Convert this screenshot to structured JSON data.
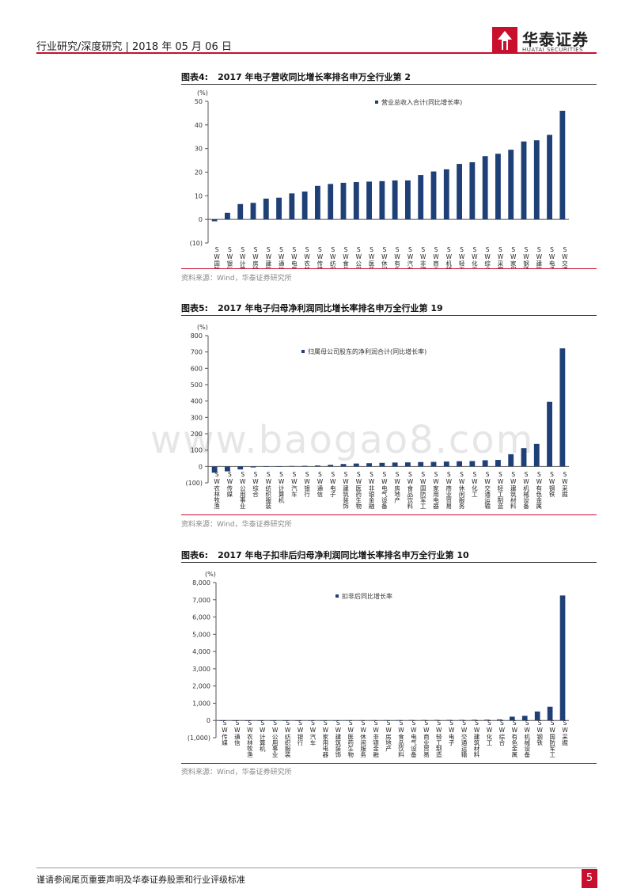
{
  "header": {
    "text": "行业研究/深度研究 | 2018 年 05 月 06 日",
    "logo_cn": "华泰证券",
    "logo_en": "HUATAI SECURITIES"
  },
  "watermark": "www.baogao8.com",
  "footer": {
    "text": "谨请参阅尾页重要声明及华泰证券股票和行业评级标准",
    "page": "5"
  },
  "colors": {
    "bar": "#1f3f77",
    "accent": "#c8102e"
  },
  "chart_data": [
    {
      "type": "bar",
      "fig_num": "图表4:",
      "title": "2017 年电子营收同比增长率排名申万全行业第 2",
      "unit": "(%)",
      "legend": "营业总收入合计(同比增长率)",
      "source": "资料来源：Wind，华泰证券研究所",
      "ylim": [
        -10,
        50
      ],
      "ticks": [
        50,
        40,
        30,
        20,
        10,
        0,
        -10
      ],
      "tick_labels": [
        "50",
        "40",
        "30",
        "20",
        "10",
        "0",
        "(10)"
      ],
      "categories": [
        "SW国防军工",
        "SW银行",
        "SW计算机",
        "SW房地产",
        "SW建筑装饰",
        "SW通信",
        "SW电气设备",
        "SW农林牧渔",
        "SW传媒",
        "SW纺织服装",
        "SW食品饮料",
        "SW公用事业",
        "SW医药生物",
        "SW休闲服务",
        "SW有色金属",
        "SW汽车",
        "SW非银金融",
        "SW商业贸易",
        "SW机械设备",
        "SW轻工制造",
        "SW化工",
        "SW综合",
        "SW采掘",
        "SW家用电器",
        "SW钢铁",
        "SW建筑材料",
        "SW电子",
        "SW交通运输"
      ],
      "values": [
        -0.8,
        2.8,
        6.5,
        7.0,
        8.8,
        9.2,
        11.0,
        11.8,
        14.2,
        15.0,
        15.5,
        15.8,
        16.0,
        16.2,
        16.5,
        16.5,
        18.8,
        20.3,
        21.2,
        23.5,
        24.2,
        26.8,
        27.8,
        29.5,
        33.0,
        33.5,
        35.8,
        46.0
      ]
    },
    {
      "type": "bar",
      "fig_num": "图表5:",
      "title": "2017 年电子归母净利润同比增长率排名申万全行业第 19",
      "unit": "(%)",
      "legend": "归属母公司股东的净利润合计(同比增长率)",
      "source": "资料来源：Wind，华泰证券研究所",
      "ylim": [
        -100,
        800
      ],
      "ticks": [
        800,
        700,
        600,
        500,
        400,
        300,
        200,
        100,
        0,
        -100
      ],
      "tick_labels": [
        "800",
        "700",
        "600",
        "500",
        "400",
        "300",
        "200",
        "100",
        "0",
        "(100)"
      ],
      "categories": [
        "SW农林牧渔",
        "SW传媒",
        "SW公用事业",
        "SW综合",
        "SW纺织服装",
        "SW计算机",
        "SW汽车",
        "SW银行",
        "SW通信",
        "SW电子",
        "SW建筑装饰",
        "SW医药生物",
        "SW非银金融",
        "SW电气设备",
        "SW房地产",
        "SW食品饮料",
        "SW国防军工",
        "SW家用电器",
        "SW商业贸易",
        "SW休闲服务",
        "SW化工",
        "SW交通运输",
        "SW轻工制造",
        "SW建筑材料",
        "SW机械设备",
        "SW有色金属",
        "SW钢铁",
        "SW采掘"
      ],
      "values": [
        -38,
        -30,
        -18,
        -6,
        -3,
        -2,
        3,
        4,
        6,
        10,
        15,
        18,
        20,
        22,
        24,
        25,
        27,
        28,
        30,
        32,
        33,
        38,
        40,
        75,
        112,
        138,
        395,
        722
      ]
    },
    {
      "type": "bar",
      "fig_num": "图表6:",
      "title": "2017 年电子扣非后归母净利润同比增长率排名申万全行业第 10",
      "unit": "(%)",
      "legend": "扣非后同比增长率",
      "source": "资料来源：Wind，华泰证券研究所",
      "ylim": [
        -1000,
        8000
      ],
      "ticks": [
        8000,
        7000,
        6000,
        5000,
        4000,
        3000,
        2000,
        1000,
        0,
        -1000
      ],
      "tick_labels": [
        "8,000",
        "7,000",
        "6,000",
        "5,000",
        "4,000",
        "3,000",
        "2,000",
        "1,000",
        "0",
        "(1,000)"
      ],
      "categories": [
        "SW传媒",
        "SW通信",
        "SW农林牧渔",
        "SW计算机",
        "SW公用事业",
        "SW纺织服装",
        "SW银行",
        "SW汽车",
        "SW家用电器",
        "SW建筑装饰",
        "SW医药生物",
        "SW休闲服务",
        "SW非银金融",
        "SW房地产",
        "SW食品饮料",
        "SW电气设备",
        "SW商业贸易",
        "SW轻工制造",
        "SW电子",
        "SW交通运输",
        "SW建筑材料",
        "SW化工",
        "SW综合",
        "SW有色金属",
        "SW机械设备",
        "SW钢铁",
        "SW国防军工",
        "SW采掘"
      ],
      "values": [
        -15,
        -12,
        -10,
        -8,
        -6,
        -5,
        3,
        5,
        8,
        10,
        12,
        14,
        16,
        18,
        20,
        25,
        28,
        30,
        32,
        35,
        40,
        45,
        60,
        220,
        270,
        520,
        800,
        7250
      ]
    }
  ]
}
